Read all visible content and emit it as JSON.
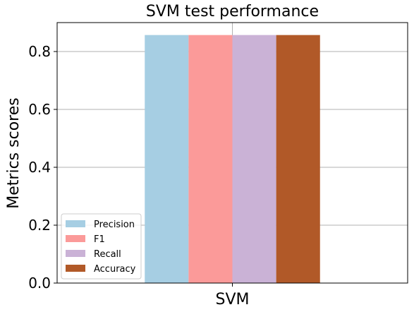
{
  "chart_data": {
    "type": "bar",
    "title": "SVM test performance",
    "xlabel": "",
    "ylabel": "Metrics scores",
    "categories": [
      "SVM"
    ],
    "series": [
      {
        "name": "Precision",
        "values": [
          0.857
        ],
        "color": "#a6cee3"
      },
      {
        "name": "F1",
        "values": [
          0.857
        ],
        "color": "#fb9a99"
      },
      {
        "name": "Recall",
        "values": [
          0.857
        ],
        "color": "#cab2d6"
      },
      {
        "name": "Accuracy",
        "values": [
          0.857
        ],
        "color": "#b15928"
      }
    ],
    "ylim": [
      0,
      0.9
    ],
    "yticks": [
      0.0,
      0.2,
      0.4,
      0.6,
      0.8
    ],
    "ytick_labels": [
      "0.0",
      "0.2",
      "0.4",
      "0.6",
      "0.8"
    ],
    "grid": true,
    "legend_position": "bottom-left"
  }
}
